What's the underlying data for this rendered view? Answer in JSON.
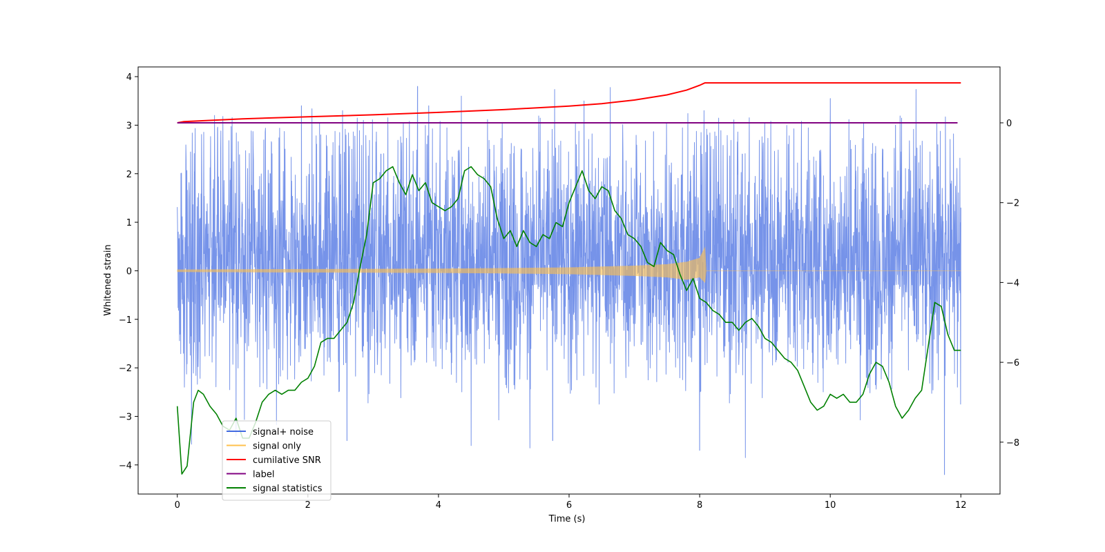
{
  "chart_data": {
    "type": "line",
    "title": "",
    "xlabel": "Time (s)",
    "ylabel": "Whitened strain",
    "ylabel_right": "",
    "xlim": [
      -0.6,
      12.6
    ],
    "ylim": [
      -4.6,
      4.2
    ],
    "ylim_right": [
      -9.3,
      1.4
    ],
    "x_ticks": [
      0,
      2,
      4,
      6,
      8,
      10,
      12
    ],
    "y_ticks_left": [
      4,
      3,
      2,
      1,
      0,
      -1,
      -2,
      -3,
      -4
    ],
    "y_ticks_right": [
      0,
      -2,
      -4,
      -6,
      -8
    ],
    "x_tick_labels": [
      "0",
      "2",
      "4",
      "6",
      "8",
      "10",
      "12"
    ],
    "y_tick_labels_left": [
      "4",
      "3",
      "2",
      "1",
      "0",
      "−1",
      "−2",
      "−3",
      "−4"
    ],
    "y_tick_labels_right": [
      "0",
      "−2",
      "−4",
      "−6",
      "−8"
    ],
    "legend_position": "lower-left",
    "legend": [
      {
        "label": "signal+ noise",
        "color": "#4169e1"
      },
      {
        "label": "signal only",
        "color": "#ffc04c"
      },
      {
        "label": "cumilative SNR",
        "color": "#ff0000"
      },
      {
        "label": "label",
        "color": "#800080"
      },
      {
        "label": "signal statistics",
        "color": "#008000"
      }
    ],
    "series": [
      {
        "name": "signal+ noise",
        "axis": "left",
        "color": "#4169e1",
        "x_range": [
          0,
          12
        ],
        "envelope_typical": [
          -1.6,
          2.2
        ],
        "peaks": [
          [
            0.57,
            3.2
          ],
          [
            1.9,
            3.4
          ],
          [
            2.85,
            3.1
          ],
          [
            3.68,
            3.8
          ],
          [
            3.85,
            3.4
          ],
          [
            4.35,
            3.6
          ],
          [
            6.23,
            3.5
          ],
          [
            10.0,
            3.55
          ],
          [
            11.0,
            3.0
          ]
        ],
        "troughs": [
          [
            4.5,
            -3.6
          ],
          [
            5.4,
            -3.65
          ],
          [
            5.75,
            -3.5
          ],
          [
            8.0,
            -3.7
          ],
          [
            8.7,
            -3.85
          ],
          [
            11.75,
            -4.2
          ],
          [
            0.9,
            -3.4
          ],
          [
            2.6,
            -3.5
          ]
        ]
      },
      {
        "name": "signal only",
        "axis": "left",
        "color": "#ffc04c",
        "x": [
          0,
          1,
          2,
          3,
          4,
          5,
          6,
          7,
          7.5,
          7.8,
          8.0,
          8.08,
          8.1,
          12
        ],
        "amplitude": [
          0.02,
          0.025,
          0.03,
          0.035,
          0.04,
          0.05,
          0.065,
          0.1,
          0.13,
          0.18,
          0.26,
          0.48,
          0.0,
          0.0
        ]
      },
      {
        "name": "cumilative SNR",
        "axis": "right",
        "color": "#ff0000",
        "x": [
          0,
          0.1,
          1,
          2,
          3,
          4,
          5,
          6,
          6.5,
          7,
          7.5,
          7.8,
          8.0,
          8.08,
          8.1,
          12
        ],
        "y": [
          0.0,
          0.03,
          0.1,
          0.15,
          0.2,
          0.26,
          0.33,
          0.42,
          0.48,
          0.57,
          0.7,
          0.82,
          0.94,
          1.0,
          1.0,
          1.0
        ]
      },
      {
        "name": "label",
        "axis": "right",
        "color": "#800080",
        "x": [
          0,
          11.95
        ],
        "y": [
          0.0,
          0.0
        ]
      },
      {
        "name": "signal statistics",
        "axis": "right",
        "color": "#008000",
        "x": [
          0.0,
          0.07,
          0.15,
          0.25,
          0.32,
          0.4,
          0.5,
          0.6,
          0.7,
          0.8,
          0.9,
          1.0,
          1.1,
          1.2,
          1.3,
          1.4,
          1.5,
          1.6,
          1.7,
          1.8,
          1.9,
          2.0,
          2.1,
          2.2,
          2.3,
          2.4,
          2.5,
          2.6,
          2.7,
          2.8,
          2.9,
          3.0,
          3.1,
          3.2,
          3.3,
          3.4,
          3.5,
          3.6,
          3.7,
          3.8,
          3.9,
          4.0,
          4.1,
          4.2,
          4.3,
          4.4,
          4.5,
          4.6,
          4.7,
          4.8,
          4.9,
          5.0,
          5.1,
          5.2,
          5.3,
          5.4,
          5.5,
          5.6,
          5.7,
          5.8,
          5.9,
          6.0,
          6.1,
          6.2,
          6.3,
          6.4,
          6.5,
          6.6,
          6.7,
          6.8,
          6.9,
          7.0,
          7.1,
          7.2,
          7.3,
          7.4,
          7.5,
          7.6,
          7.7,
          7.8,
          7.9,
          8.0,
          8.1,
          8.2,
          8.3,
          8.4,
          8.5,
          8.6,
          8.7,
          8.8,
          8.9,
          9.0,
          9.1,
          9.2,
          9.3,
          9.4,
          9.5,
          9.6,
          9.7,
          9.8,
          9.9,
          10.0,
          10.1,
          10.2,
          10.3,
          10.4,
          10.5,
          10.6,
          10.7,
          10.8,
          10.9,
          11.0,
          11.1,
          11.2,
          11.3,
          11.4,
          11.5,
          11.6,
          11.7,
          11.8,
          11.9,
          12.0
        ],
        "y": [
          -7.1,
          -8.8,
          -8.6,
          -7.0,
          -6.7,
          -6.8,
          -7.1,
          -7.3,
          -7.6,
          -7.7,
          -7.4,
          -7.9,
          -7.9,
          -7.5,
          -7.0,
          -6.8,
          -6.7,
          -6.8,
          -6.7,
          -6.7,
          -6.5,
          -6.4,
          -6.1,
          -5.5,
          -5.4,
          -5.4,
          -5.2,
          -5.0,
          -4.5,
          -3.6,
          -2.8,
          -1.5,
          -1.4,
          -1.2,
          -1.1,
          -1.5,
          -1.8,
          -1.3,
          -1.7,
          -1.5,
          -2.0,
          -2.1,
          -2.2,
          -2.1,
          -1.9,
          -1.2,
          -1.1,
          -1.3,
          -1.4,
          -1.6,
          -2.4,
          -2.9,
          -2.7,
          -3.1,
          -2.7,
          -3.0,
          -3.1,
          -2.8,
          -2.9,
          -2.5,
          -2.6,
          -2.0,
          -1.6,
          -1.2,
          -1.7,
          -1.9,
          -1.6,
          -1.7,
          -2.2,
          -2.4,
          -2.8,
          -2.9,
          -3.1,
          -3.5,
          -3.6,
          -3.0,
          -3.2,
          -3.3,
          -3.8,
          -4.2,
          -3.9,
          -4.4,
          -4.5,
          -4.7,
          -4.8,
          -5.0,
          -5.0,
          -5.2,
          -5.0,
          -4.9,
          -5.1,
          -5.4,
          -5.5,
          -5.7,
          -5.9,
          -6.0,
          -6.2,
          -6.6,
          -7.0,
          -7.2,
          -7.1,
          -6.8,
          -6.9,
          -6.8,
          -7.0,
          -7.0,
          -6.8,
          -6.3,
          -6.0,
          -6.1,
          -6.5,
          -7.1,
          -7.4,
          -7.2,
          -6.9,
          -6.7,
          -5.6,
          -4.5,
          -4.6,
          -5.3,
          -5.7,
          -5.7
        ]
      }
    ]
  }
}
